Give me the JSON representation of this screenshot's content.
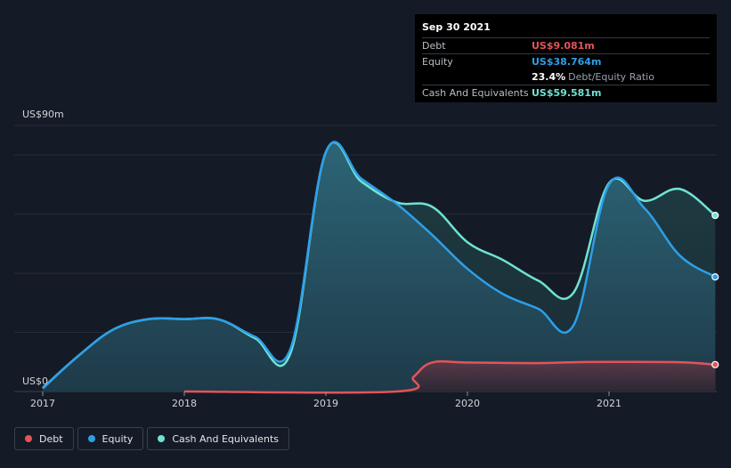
{
  "chart_data": {
    "type": "area",
    "y_axis": {
      "ylim": [
        0,
        90
      ],
      "top_label": "US$90m",
      "bottom_label": "US$0"
    },
    "x_ticks": [
      "2017",
      "2018",
      "2019",
      "2020",
      "2021"
    ],
    "series": [
      {
        "name": "Debt",
        "key": "debt",
        "color": "#e4535a",
        "points": [
          [
            2018.0,
            0
          ],
          [
            2019.5,
            0
          ],
          [
            2019.62,
            5
          ],
          [
            2019.75,
            9.8
          ],
          [
            2020.0,
            9.8
          ],
          [
            2020.5,
            9.6
          ],
          [
            2020.75,
            9.9
          ],
          [
            2021.0,
            10.0
          ],
          [
            2021.5,
            9.9
          ],
          [
            2021.75,
            9.081
          ]
        ]
      },
      {
        "name": "Equity",
        "key": "equity",
        "color": "#2d9fe8",
        "points": [
          [
            2017.0,
            1.0
          ],
          [
            2017.25,
            12
          ],
          [
            2017.5,
            21
          ],
          [
            2017.75,
            24.5
          ],
          [
            2018.0,
            24.5
          ],
          [
            2018.25,
            24.3
          ],
          [
            2018.5,
            18.5
          ],
          [
            2018.75,
            14.5
          ],
          [
            2019.0,
            81
          ],
          [
            2019.25,
            72
          ],
          [
            2019.5,
            63.5
          ],
          [
            2019.75,
            53
          ],
          [
            2020.0,
            41.5
          ],
          [
            2020.25,
            33
          ],
          [
            2020.5,
            28
          ],
          [
            2020.75,
            22.5
          ],
          [
            2021.0,
            70
          ],
          [
            2021.25,
            62
          ],
          [
            2021.5,
            46
          ],
          [
            2021.75,
            38.764
          ]
        ]
      },
      {
        "name": "Cash And Equivalents",
        "key": "cash",
        "color": "#6fe3d3",
        "points": [
          [
            2017.0,
            1.2
          ],
          [
            2017.25,
            12
          ],
          [
            2017.5,
            21
          ],
          [
            2017.75,
            24.5
          ],
          [
            2018.0,
            24.5
          ],
          [
            2018.25,
            24.3
          ],
          [
            2018.5,
            18
          ],
          [
            2018.75,
            13
          ],
          [
            2019.0,
            81
          ],
          [
            2019.25,
            71
          ],
          [
            2019.5,
            64
          ],
          [
            2019.75,
            62.5
          ],
          [
            2020.0,
            50.5
          ],
          [
            2020.25,
            44.5
          ],
          [
            2020.5,
            37.5
          ],
          [
            2020.75,
            33.5
          ],
          [
            2021.0,
            70.5
          ],
          [
            2021.25,
            64.5
          ],
          [
            2021.5,
            68.5
          ],
          [
            2021.75,
            59.581
          ]
        ]
      }
    ],
    "legend_position": "bottom-left",
    "grid": true
  },
  "tooltip": {
    "date": "Sep 30 2021",
    "debt_label": "Debt",
    "debt_value": "US$9.081m",
    "equity_label": "Equity",
    "equity_value": "US$38.764m",
    "ratio_value": "23.4%",
    "ratio_label": "Debt/Equity Ratio",
    "cash_label": "Cash And Equivalents",
    "cash_value": "US$59.581m"
  },
  "legend": {
    "debt": "Debt",
    "equity": "Equity",
    "cash": "Cash And Equivalents"
  },
  "colors": {
    "debt": "#e4535a",
    "equity": "#2d9fe8",
    "cash": "#6fe3d3"
  }
}
